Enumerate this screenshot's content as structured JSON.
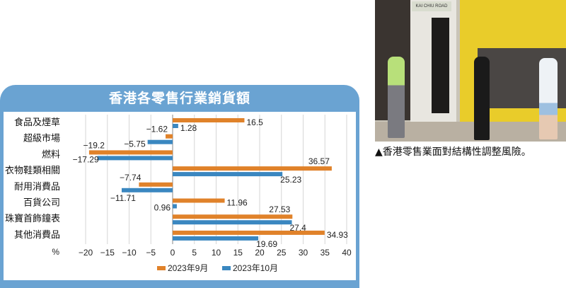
{
  "chart_data": {
    "type": "bar",
    "orientation": "horizontal",
    "title": "香港各零售行業銷貨額",
    "unit_label": "%",
    "categories": [
      "食品及煙草",
      "超級市場",
      "燃料",
      "衣物鞋類相關",
      "耐用消費品",
      "百貨公司",
      "珠寶首飾鐘表",
      "其他消費品"
    ],
    "series": [
      {
        "name": "2023年9月",
        "color": "#e0822a",
        "values": [
          16.5,
          -1.62,
          -19.2,
          36.57,
          -7.74,
          11.96,
          27.53,
          34.93
        ]
      },
      {
        "name": "2023年10月",
        "color": "#3a87c0",
        "values": [
          1.28,
          -5.75,
          -17.29,
          25.23,
          -11.71,
          0.96,
          27.4,
          19.69
        ]
      }
    ],
    "xlim": [
      -20,
      40
    ],
    "xticks": [
      -20,
      -15,
      -10,
      -5,
      0,
      5,
      10,
      15,
      20,
      25,
      30,
      35,
      40
    ],
    "xtick_labels": [
      "−20",
      "−15",
      "−10",
      "−5",
      "0",
      "5",
      "10",
      "15",
      "20",
      "25",
      "30",
      "35",
      "40"
    ],
    "value_labels": [
      [
        "16.5",
        "−1.62",
        "−19.2",
        "36.57",
        "−7.74",
        "11.96",
        "27.53",
        "34.93"
      ],
      [
        "1.28",
        "−5.75",
        "−17.29",
        "25.23",
        "−11.71",
        "0.96",
        "27.4",
        "19.69"
      ]
    ],
    "grid": true,
    "legend_position": "bottom"
  },
  "photo": {
    "storefront_sign": "KAI CHIU ROAD"
  },
  "caption": "▲香港零售業面對結構性調整風險。",
  "colors": {
    "panel": "#6aa3d2",
    "orange": "#e0822a",
    "blue": "#3a87c0"
  }
}
